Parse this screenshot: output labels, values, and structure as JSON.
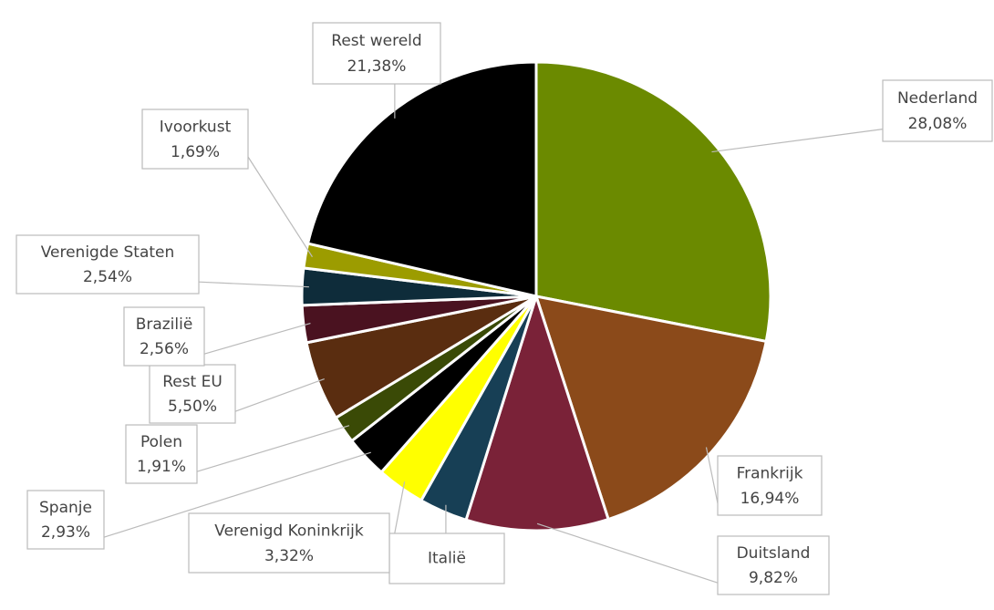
{
  "chart_data": {
    "type": "pie",
    "categories": [
      "Nederland",
      "Frankrijk",
      "Duitsland",
      "Italië",
      "Verenigd Koninkrijk",
      "Spanje",
      "Polen",
      "Rest EU",
      "Brazilië",
      "Verenigde Staten",
      "Ivoorkust",
      "Rest wereld"
    ],
    "values": [
      28.08,
      16.94,
      9.82,
      3.33,
      3.32,
      2.93,
      1.91,
      5.5,
      2.56,
      2.54,
      1.69,
      21.38
    ],
    "value_labels": [
      "28,08%",
      "16,94%",
      "9,82%",
      null,
      "3,32%",
      "2,93%",
      "1,91%",
      "5,50%",
      "2,56%",
      "2,54%",
      "1,69%",
      "21,38%"
    ],
    "colors": [
      "#6b8a00",
      "#8b4a1a",
      "#7a2238",
      "#173f55",
      "#ffff00",
      "#000000",
      "#3a4a06",
      "#5a2d10",
      "#4a1220",
      "#0e2c3a",
      "#9c9c00",
      "#000000"
    ]
  }
}
